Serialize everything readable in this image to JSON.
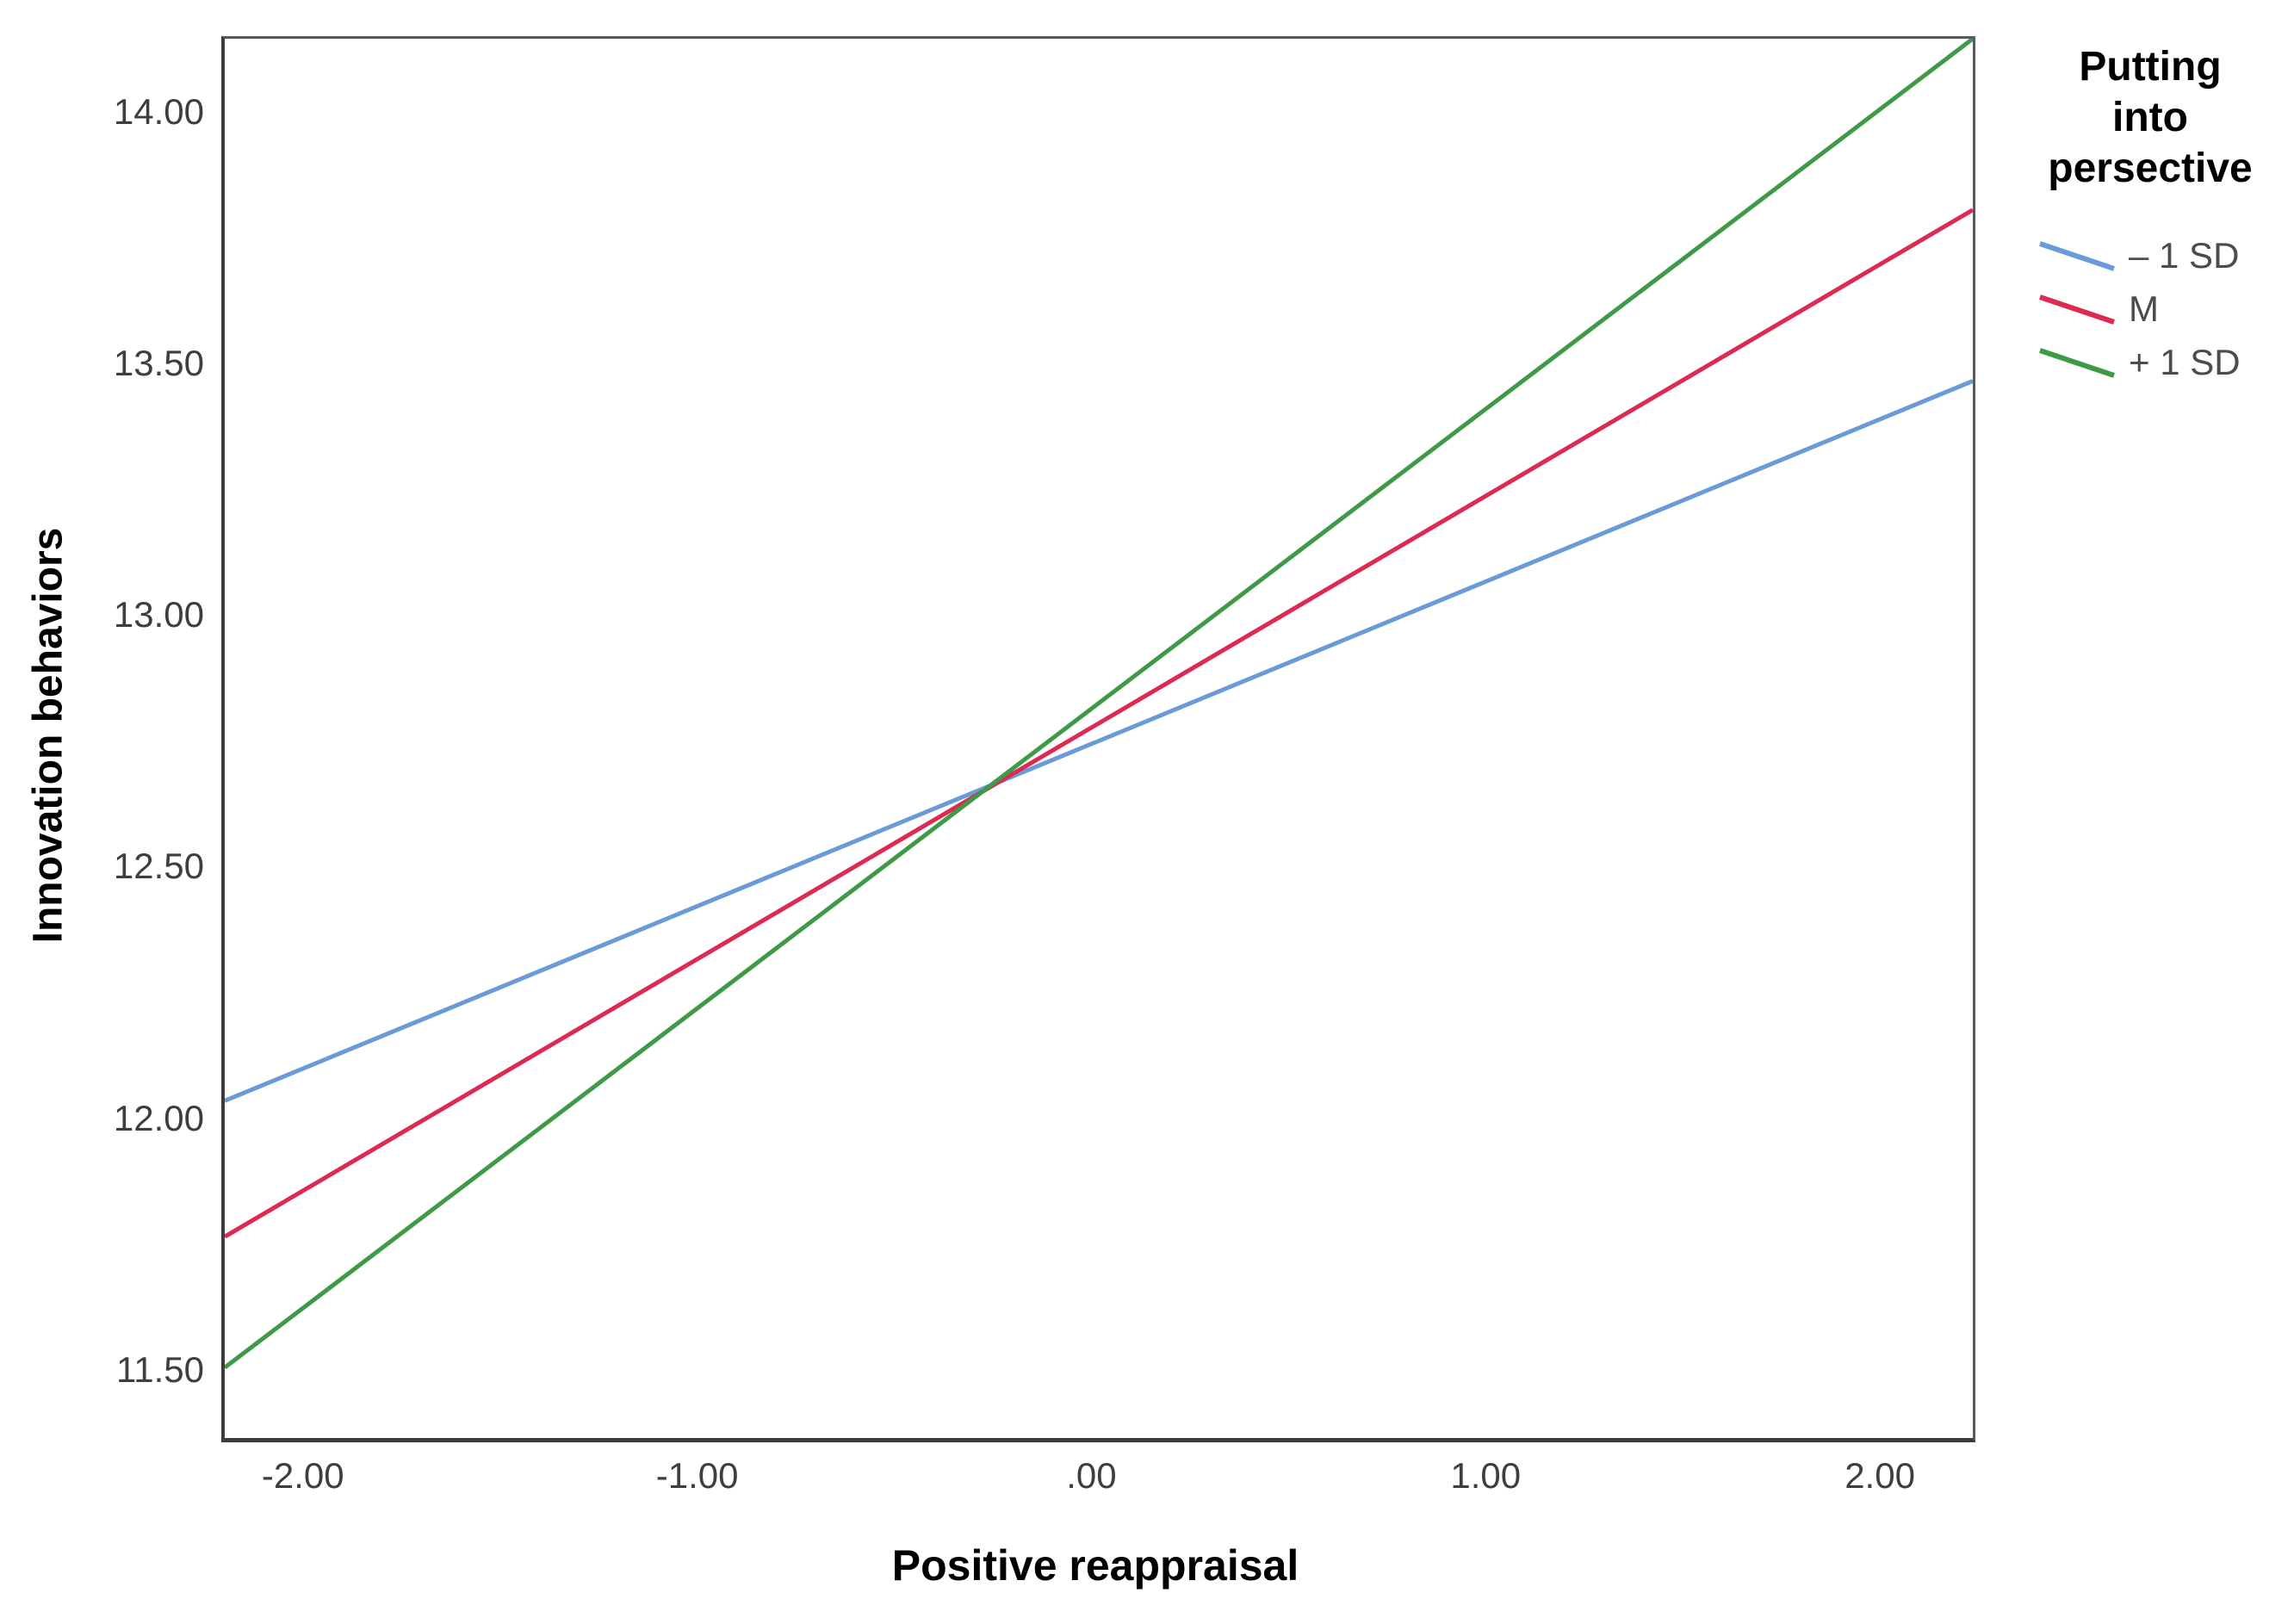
{
  "legend": {
    "title": "Putting into persective",
    "title_lines": [
      "Putting",
      "into",
      "persective"
    ],
    "items": [
      {
        "name": "minus-1sd",
        "label": "– 1 SD",
        "color": "#699BD8"
      },
      {
        "name": "mean",
        "label": "M",
        "color": "#DD2A52"
      },
      {
        "name": "plus-1sd",
        "label": "+ 1 SD",
        "color": "#3F9A48"
      }
    ]
  },
  "chart_data": {
    "type": "line",
    "title": "",
    "xlabel": "Positive reappraisal",
    "ylabel": "Innovation behaviors",
    "xlim": [
      -2.207,
      2.227
    ],
    "ylim": [
      11.37,
      14.15
    ],
    "grid": false,
    "legend_position": "right",
    "legend_title": "Putting into persective",
    "xticks": [
      {
        "value": -2,
        "label": "-2.00"
      },
      {
        "value": -1,
        "label": "-1.00"
      },
      {
        "value": 0,
        "label": ".00"
      },
      {
        "value": 1,
        "label": "1.00"
      },
      {
        "value": 2,
        "label": "2.00"
      }
    ],
    "yticks": [
      {
        "value": 14.0,
        "label": "14.00"
      },
      {
        "value": 13.5,
        "label": "13.50"
      },
      {
        "value": 13.0,
        "label": "13.00"
      },
      {
        "value": 12.5,
        "label": "12.50"
      },
      {
        "value": 12.0,
        "label": "12.00"
      },
      {
        "value": 11.5,
        "label": "11.50"
      }
    ],
    "series": [
      {
        "name": "– 1 SD",
        "color": "#699BD8",
        "points": [
          [
            -2.207,
            12.04
          ],
          [
            2.227,
            13.47
          ]
        ]
      },
      {
        "name": "M",
        "color": "#DD2A52",
        "points": [
          [
            -2.207,
            11.77
          ],
          [
            2.227,
            13.81
          ]
        ]
      },
      {
        "name": "+ 1 SD",
        "color": "#3F9A48",
        "points": [
          [
            -2.207,
            11.51
          ],
          [
            2.227,
            14.15
          ]
        ]
      }
    ],
    "intersection_point": {
      "x": -0.3,
      "y": 12.65
    },
    "line_width": 5
  }
}
